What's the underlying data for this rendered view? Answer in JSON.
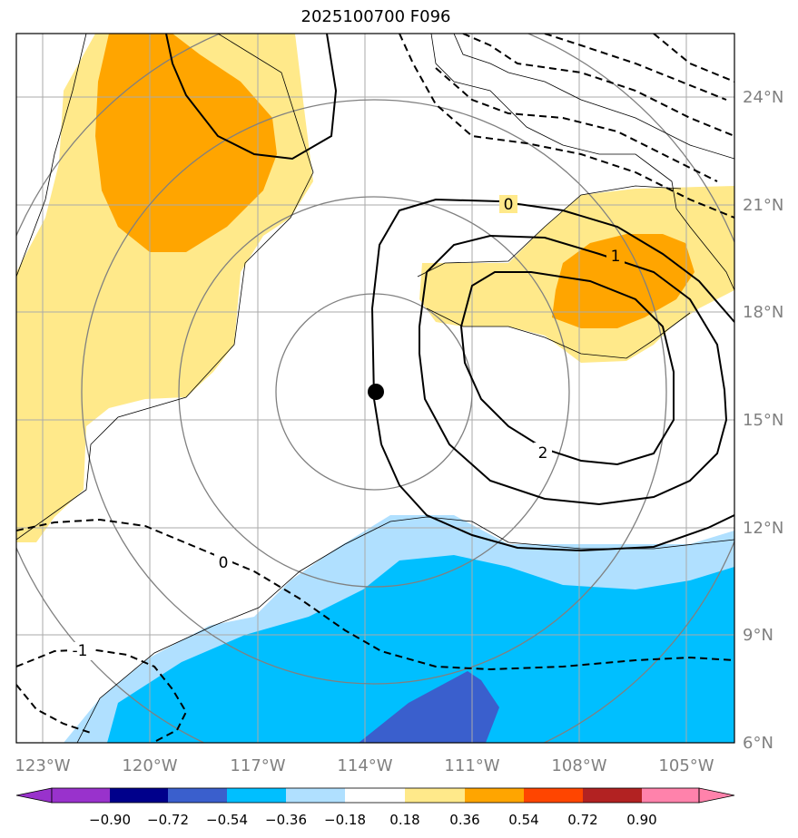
{
  "title": "2025100700 F096",
  "longitude_labels": [
    "123°W",
    "120°W",
    "117°W",
    "114°W",
    "111°W",
    "108°W",
    "105°W"
  ],
  "latitude_labels": [
    "24°N",
    "21°N",
    "18°N",
    "15°N",
    "12°N",
    "9°N",
    "6°N"
  ],
  "contour_labels": {
    "zero_top": "0",
    "one_right": "1",
    "two_right": "2",
    "zero_neg": "0",
    "neg_one": "-1"
  },
  "colorbar": {
    "ticks": [
      "−0.90",
      "−0.72",
      "−0.54",
      "−0.36",
      "−0.18",
      "0.18",
      "0.36",
      "0.54",
      "0.72",
      "0.90"
    ],
    "colors": [
      "#9932cc",
      "#00008b",
      "#3a5fcd",
      "#00bfff",
      "#b0e0ff",
      "#ffffff",
      "#ffe98a",
      "#ffa500",
      "#ff4500",
      "#b22222",
      "#ff82ab"
    ]
  },
  "colors": {
    "light_yellow": "#ffe98a",
    "orange": "#ffa500",
    "light_blue": "#b0e0ff",
    "deep_sky_blue": "#00bfff",
    "royal_blue": "#3a5fcd",
    "grid": "#aaaaaa",
    "tick_label": "#808080"
  },
  "storm_marker": "black-dot"
}
